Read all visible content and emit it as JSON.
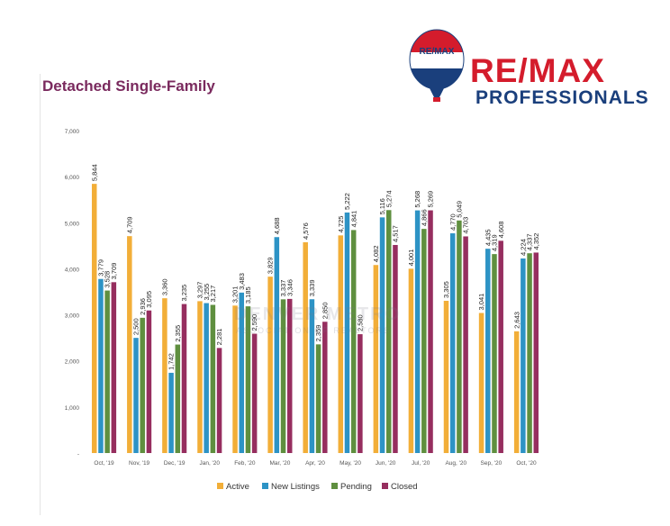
{
  "page_title": "Detached Single-Family",
  "brand": {
    "name": "RE/MAX",
    "tagline": "PROFESSIONALS",
    "balloon_text": "RE/MAX"
  },
  "watermark": {
    "main": "DENVER METRO",
    "sub": "ASSOCIATION OF REALTORS"
  },
  "colors": {
    "active": "#f2ae38",
    "new_listings": "#2d93c5",
    "pending": "#5f8f3f",
    "closed": "#962e5f",
    "title": "#7a2a5e",
    "brand_red": "#d41c2c",
    "brand_blue": "#1a3f7c"
  },
  "chart_data": {
    "type": "bar",
    "title": "",
    "xlabel": "",
    "ylabel": "",
    "ylim": [
      0,
      7000
    ],
    "yticks": [
      "-",
      "1,000",
      "2,000",
      "3,000",
      "4,000",
      "5,000",
      "6,000",
      "7,000"
    ],
    "grid": false,
    "legend_position": "bottom",
    "categories": [
      "Oct, '19",
      "Nov, '19",
      "Dec, '19",
      "Jan, '20",
      "Feb, '20",
      "Mar, '20",
      "Apr, '20",
      "May, '20",
      "Jun, '20",
      "Jul, '20",
      "Aug, '20",
      "Sep, '20",
      "Oct, '20"
    ],
    "series": [
      {
        "name": "Active",
        "values": [
          5844,
          4709,
          3360,
          3297,
          3201,
          3829,
          4576,
          4725,
          4082,
          4001,
          3305,
          3041,
          2643
        ],
        "labels": [
          "5,844",
          "4,709",
          "3,360",
          "3,297",
          "3,201",
          "3,829",
          "4,576",
          "4,725",
          "4,082",
          "4,001",
          "3,305",
          "3,041",
          "2,643"
        ]
      },
      {
        "name": "New Listings",
        "values": [
          3779,
          2500,
          1742,
          3255,
          3483,
          4688,
          3339,
          5222,
          5116,
          5268,
          4770,
          4435,
          4224
        ],
        "labels": [
          "3,779",
          "2,500",
          "1,742",
          "3,255",
          "3,483",
          "4,688",
          "3,339",
          "5,222",
          "5,116",
          "5,268",
          "4,770",
          "4,435",
          "4,224"
        ]
      },
      {
        "name": "Pending",
        "values": [
          3528,
          2936,
          2355,
          3217,
          3185,
          3337,
          2359,
          4841,
          5274,
          4866,
          5049,
          4319,
          4337
        ],
        "labels": [
          "3,528",
          "2,936",
          "2,355",
          "3,217",
          "3,185",
          "3,337",
          "2,359",
          "4,841",
          "5,274",
          "4,866",
          "5,049",
          "4,319",
          "4,337"
        ]
      },
      {
        "name": "Closed",
        "values": [
          3709,
          3095,
          3235,
          2281,
          2590,
          3346,
          2850,
          2580,
          4517,
          5269,
          4703,
          4608,
          4352
        ],
        "labels": [
          "3,709",
          "3,095",
          "3,235",
          "2,281",
          "2,590",
          "3,346",
          "2,850",
          "2,580",
          "4,517",
          "5,269",
          "4,703",
          "4,608",
          "4,352"
        ]
      }
    ]
  }
}
